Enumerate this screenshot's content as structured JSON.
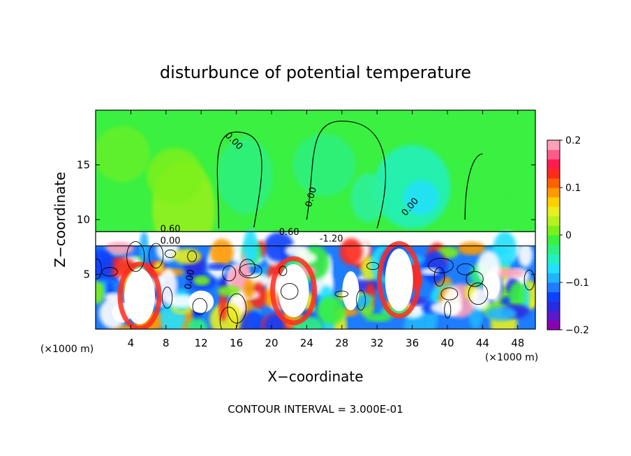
{
  "chart_data": {
    "type": "heatmap",
    "title": "disturbunce of potential temperature",
    "xlabel": "X−coordinate",
    "ylabel": "Z−coordinate",
    "x_unit_left": "(×1000 m)",
    "x_unit_right": "(×1000 m)",
    "xlim": [
      0,
      50
    ],
    "ylim": [
      0,
      20
    ],
    "x_ticks": [
      "4",
      "8",
      "12",
      "16",
      "20",
      "24",
      "28",
      "32",
      "36",
      "40",
      "44",
      "48"
    ],
    "x_tick_values": [
      4,
      8,
      12,
      16,
      20,
      24,
      28,
      32,
      36,
      40,
      44,
      48
    ],
    "y_ticks": [
      "5",
      "10",
      "15"
    ],
    "y_tick_values": [
      5,
      10,
      15
    ],
    "colorbar": {
      "min": -0.2,
      "max": 0.2,
      "tick_labels": [
        "0.2",
        "0.1",
        "0",
        "−0.1",
        "−0.2"
      ],
      "tick_values": [
        0.2,
        0.1,
        0,
        -0.1,
        -0.2
      ],
      "colors": [
        "#8a00b0",
        "#5a1ac8",
        "#2a2ae0",
        "#1040ff",
        "#1e7cff",
        "#22b4ff",
        "#22e0ff",
        "#22f0c0",
        "#2ef080",
        "#3af040",
        "#7cf01e",
        "#b8f01e",
        "#e8f01e",
        "#ffd000",
        "#ff9a00",
        "#ff6000",
        "#ff2a1e",
        "#ff1a50",
        "#ff5a8a",
        "#ffa0b8"
      ]
    },
    "contour_labels": [
      {
        "text": "0.00",
        "x": 15.5,
        "z": 17.0,
        "angle": 45
      },
      {
        "text": "0.00",
        "x": 24.8,
        "z": 12.0,
        "angle": -75
      },
      {
        "text": "0.00",
        "x": 36.0,
        "z": 11.0,
        "angle": -50
      },
      {
        "text": "0.60",
        "x": 8.5,
        "z": 8.9,
        "angle": 0
      },
      {
        "text": "0.00",
        "x": 8.5,
        "z": 7.8,
        "angle": 0
      },
      {
        "text": "-1.20",
        "x": 26.8,
        "z": 8.0,
        "angle": 0
      },
      {
        "text": "0.60",
        "x": 22.0,
        "z": 8.6,
        "angle": 0
      },
      {
        "text": "0.00",
        "x": 11.0,
        "z": 4.5,
        "angle": -80
      }
    ],
    "footer": "CONTOUR INTERVAL = 3.000E-01"
  }
}
